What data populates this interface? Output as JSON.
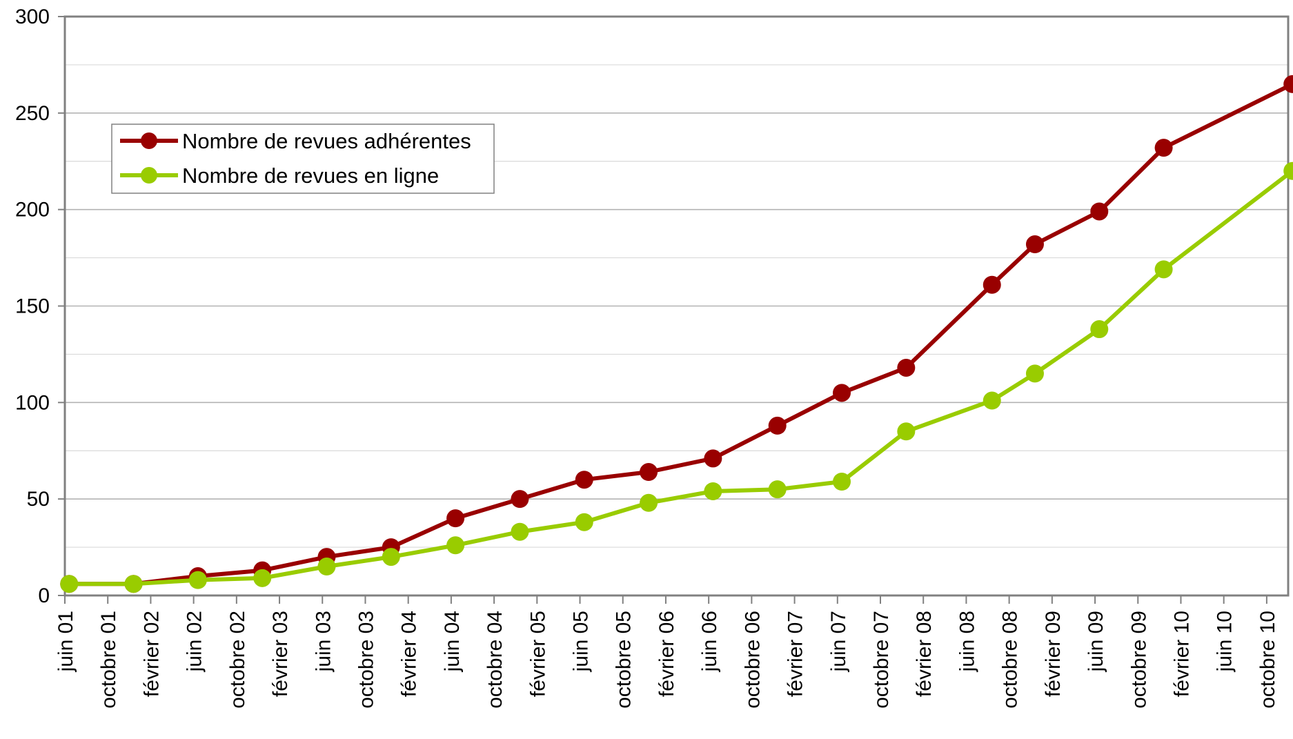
{
  "chart_data": {
    "type": "line",
    "title": "",
    "xlabel": "",
    "ylabel": "",
    "ylim": [
      0,
      300
    ],
    "yticks": [
      0,
      50,
      100,
      150,
      200,
      250,
      300
    ],
    "grid": true,
    "legend_position": "top-left",
    "categories": [
      "juin 01",
      "octobre 01",
      "février 02",
      "juin 02",
      "octobre 02",
      "février 03",
      "juin 03",
      "octobre 03",
      "février 04",
      "juin 04",
      "octobre 04",
      "février 05",
      "juin 05",
      "octobre 05",
      "février 06",
      "juin 06",
      "octobre 06",
      "février 07",
      "juin 07",
      "octobre 07",
      "février 08",
      "juin 08",
      "octobre 08",
      "février 09",
      "juin 09",
      "octobre 09",
      "février 10",
      "juin 10",
      "octobre 10"
    ],
    "series": [
      {
        "name": "Nombre de revues adhérentes",
        "color": "#990000",
        "points": [
          {
            "x": 0.1,
            "y": 6
          },
          {
            "x": 1.6,
            "y": 6
          },
          {
            "x": 3.1,
            "y": 10
          },
          {
            "x": 4.6,
            "y": 13
          },
          {
            "x": 6.1,
            "y": 20
          },
          {
            "x": 7.6,
            "y": 25
          },
          {
            "x": 9.1,
            "y": 40
          },
          {
            "x": 10.6,
            "y": 50
          },
          {
            "x": 12.1,
            "y": 60
          },
          {
            "x": 13.6,
            "y": 64
          },
          {
            "x": 15.1,
            "y": 71
          },
          {
            "x": 16.6,
            "y": 88
          },
          {
            "x": 18.1,
            "y": 105
          },
          {
            "x": 19.6,
            "y": 118
          },
          {
            "x": 21.6,
            "y": 161
          },
          {
            "x": 22.6,
            "y": 182
          },
          {
            "x": 24.1,
            "y": 199
          },
          {
            "x": 25.6,
            "y": 232
          },
          {
            "x": 28.6,
            "y": 265
          }
        ]
      },
      {
        "name": "Nombre de revues en ligne",
        "color": "#99CC00",
        "points": [
          {
            "x": 0.1,
            "y": 6
          },
          {
            "x": 1.6,
            "y": 6
          },
          {
            "x": 3.1,
            "y": 8
          },
          {
            "x": 4.6,
            "y": 9
          },
          {
            "x": 6.1,
            "y": 15
          },
          {
            "x": 7.6,
            "y": 20
          },
          {
            "x": 9.1,
            "y": 26
          },
          {
            "x": 10.6,
            "y": 33
          },
          {
            "x": 12.1,
            "y": 38
          },
          {
            "x": 13.6,
            "y": 48
          },
          {
            "x": 15.1,
            "y": 54
          },
          {
            "x": 16.6,
            "y": 55
          },
          {
            "x": 18.1,
            "y": 59
          },
          {
            "x": 19.6,
            "y": 85
          },
          {
            "x": 21.6,
            "y": 101
          },
          {
            "x": 22.6,
            "y": 115
          },
          {
            "x": 24.1,
            "y": 138
          },
          {
            "x": 25.6,
            "y": 169
          },
          {
            "x": 28.6,
            "y": 220
          }
        ]
      }
    ]
  }
}
